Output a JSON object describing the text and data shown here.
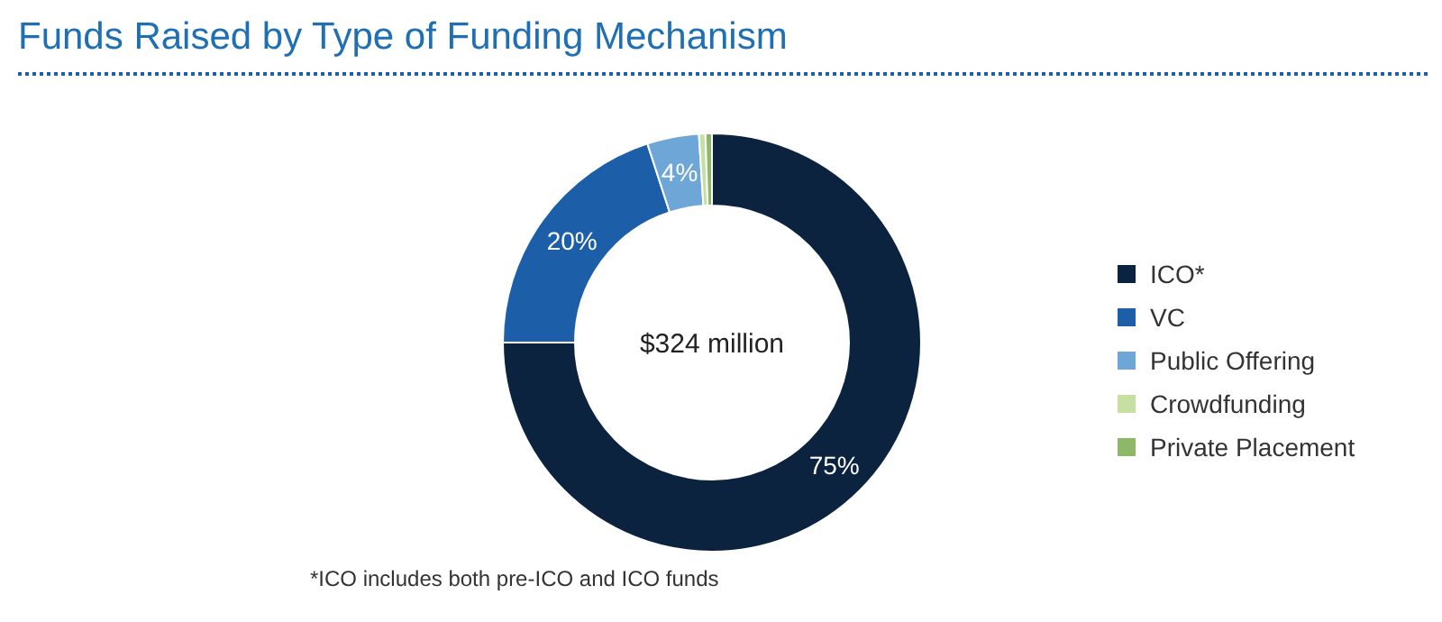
{
  "chart_data": {
    "type": "donut",
    "title": "Funds Raised by Type of Funding Mechanism",
    "categories": [
      "ICO*",
      "VC",
      "Public Offering",
      "Crowdfunding",
      "Private Placement"
    ],
    "values": [
      75,
      20,
      4,
      0.5,
      0.5
    ],
    "colors": [
      "#0c2340",
      "#1d5ea8",
      "#6fa6d8",
      "#c6e0a4",
      "#8db868"
    ],
    "value_labels": [
      "75%",
      "20%",
      "4%",
      null,
      null
    ],
    "legend": "right",
    "annotations": [
      "$324 million",
      "*ICO includes both pre-ICO and ICO funds"
    ]
  }
}
